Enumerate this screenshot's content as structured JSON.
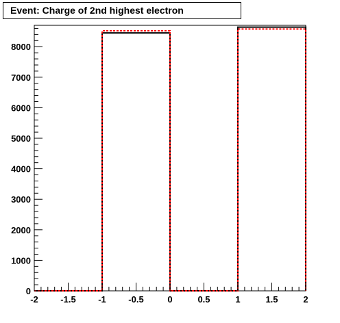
{
  "title": "Event: Charge of 2nd highest electron",
  "chart_data": {
    "type": "histogram",
    "title": "Event: Charge of 2nd highest electron",
    "xlabel": "",
    "ylabel": "",
    "xlim": [
      -2,
      2
    ],
    "ylim": [
      0,
      8700
    ],
    "bin_edges": [
      -2,
      -1,
      0,
      1,
      2
    ],
    "x_tick_labels": [
      "-2",
      "-1.5",
      "-1",
      "-0.5",
      "0",
      "0.5",
      "1",
      "1.5",
      "2"
    ],
    "y_tick_labels": [
      "0",
      "1000",
      "2000",
      "3000",
      "4000",
      "5000",
      "6000",
      "7000",
      "8000"
    ],
    "series": [
      {
        "values": [
          0,
          8450,
          0,
          8640
        ],
        "color": "#000000",
        "style": "solid"
      },
      {
        "values": [
          0,
          8520,
          0,
          8580
        ],
        "color": "#ff0000",
        "style": "dashed"
      }
    ],
    "grid": false,
    "legend": "none"
  }
}
